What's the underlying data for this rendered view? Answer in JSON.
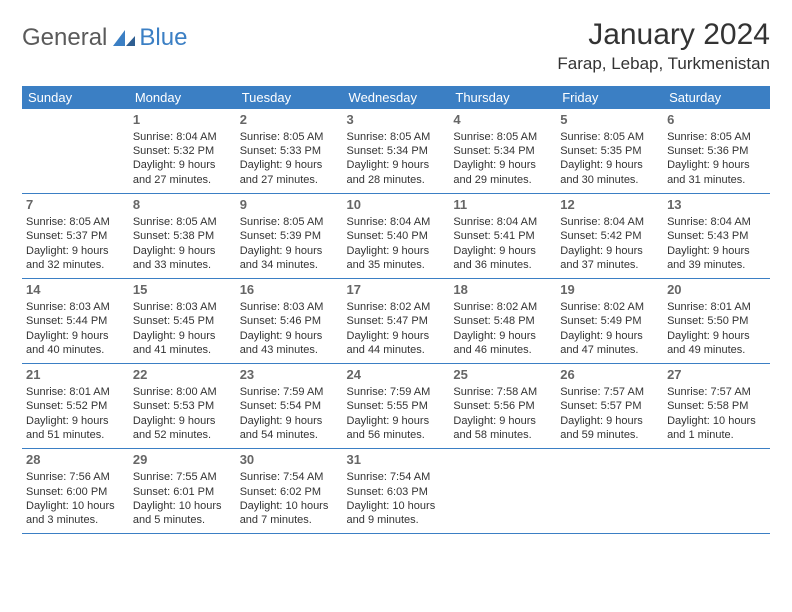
{
  "brand": {
    "general": "General",
    "blue": "Blue"
  },
  "title": "January 2024",
  "location": "Farap, Lebap, Turkmenistan",
  "style": {
    "header_bg": "#3b7fc4",
    "header_fg": "#ffffff",
    "row_border": "#3b7fc4",
    "body_bg": "#ffffff",
    "title_fontsize": 30,
    "location_fontsize": 17,
    "th_fontsize": 13,
    "cell_fontsize": 11,
    "daynum_color": "#666666"
  },
  "weekdays": [
    "Sunday",
    "Monday",
    "Tuesday",
    "Wednesday",
    "Thursday",
    "Friday",
    "Saturday"
  ],
  "weeks": [
    [
      null,
      {
        "d": "1",
        "sr": "Sunrise: 8:04 AM",
        "ss": "Sunset: 5:32 PM",
        "dl": "Daylight: 9 hours and 27 minutes."
      },
      {
        "d": "2",
        "sr": "Sunrise: 8:05 AM",
        "ss": "Sunset: 5:33 PM",
        "dl": "Daylight: 9 hours and 27 minutes."
      },
      {
        "d": "3",
        "sr": "Sunrise: 8:05 AM",
        "ss": "Sunset: 5:34 PM",
        "dl": "Daylight: 9 hours and 28 minutes."
      },
      {
        "d": "4",
        "sr": "Sunrise: 8:05 AM",
        "ss": "Sunset: 5:34 PM",
        "dl": "Daylight: 9 hours and 29 minutes."
      },
      {
        "d": "5",
        "sr": "Sunrise: 8:05 AM",
        "ss": "Sunset: 5:35 PM",
        "dl": "Daylight: 9 hours and 30 minutes."
      },
      {
        "d": "6",
        "sr": "Sunrise: 8:05 AM",
        "ss": "Sunset: 5:36 PM",
        "dl": "Daylight: 9 hours and 31 minutes."
      }
    ],
    [
      {
        "d": "7",
        "sr": "Sunrise: 8:05 AM",
        "ss": "Sunset: 5:37 PM",
        "dl": "Daylight: 9 hours and 32 minutes."
      },
      {
        "d": "8",
        "sr": "Sunrise: 8:05 AM",
        "ss": "Sunset: 5:38 PM",
        "dl": "Daylight: 9 hours and 33 minutes."
      },
      {
        "d": "9",
        "sr": "Sunrise: 8:05 AM",
        "ss": "Sunset: 5:39 PM",
        "dl": "Daylight: 9 hours and 34 minutes."
      },
      {
        "d": "10",
        "sr": "Sunrise: 8:04 AM",
        "ss": "Sunset: 5:40 PM",
        "dl": "Daylight: 9 hours and 35 minutes."
      },
      {
        "d": "11",
        "sr": "Sunrise: 8:04 AM",
        "ss": "Sunset: 5:41 PM",
        "dl": "Daylight: 9 hours and 36 minutes."
      },
      {
        "d": "12",
        "sr": "Sunrise: 8:04 AM",
        "ss": "Sunset: 5:42 PM",
        "dl": "Daylight: 9 hours and 37 minutes."
      },
      {
        "d": "13",
        "sr": "Sunrise: 8:04 AM",
        "ss": "Sunset: 5:43 PM",
        "dl": "Daylight: 9 hours and 39 minutes."
      }
    ],
    [
      {
        "d": "14",
        "sr": "Sunrise: 8:03 AM",
        "ss": "Sunset: 5:44 PM",
        "dl": "Daylight: 9 hours and 40 minutes."
      },
      {
        "d": "15",
        "sr": "Sunrise: 8:03 AM",
        "ss": "Sunset: 5:45 PM",
        "dl": "Daylight: 9 hours and 41 minutes."
      },
      {
        "d": "16",
        "sr": "Sunrise: 8:03 AM",
        "ss": "Sunset: 5:46 PM",
        "dl": "Daylight: 9 hours and 43 minutes."
      },
      {
        "d": "17",
        "sr": "Sunrise: 8:02 AM",
        "ss": "Sunset: 5:47 PM",
        "dl": "Daylight: 9 hours and 44 minutes."
      },
      {
        "d": "18",
        "sr": "Sunrise: 8:02 AM",
        "ss": "Sunset: 5:48 PM",
        "dl": "Daylight: 9 hours and 46 minutes."
      },
      {
        "d": "19",
        "sr": "Sunrise: 8:02 AM",
        "ss": "Sunset: 5:49 PM",
        "dl": "Daylight: 9 hours and 47 minutes."
      },
      {
        "d": "20",
        "sr": "Sunrise: 8:01 AM",
        "ss": "Sunset: 5:50 PM",
        "dl": "Daylight: 9 hours and 49 minutes."
      }
    ],
    [
      {
        "d": "21",
        "sr": "Sunrise: 8:01 AM",
        "ss": "Sunset: 5:52 PM",
        "dl": "Daylight: 9 hours and 51 minutes."
      },
      {
        "d": "22",
        "sr": "Sunrise: 8:00 AM",
        "ss": "Sunset: 5:53 PM",
        "dl": "Daylight: 9 hours and 52 minutes."
      },
      {
        "d": "23",
        "sr": "Sunrise: 7:59 AM",
        "ss": "Sunset: 5:54 PM",
        "dl": "Daylight: 9 hours and 54 minutes."
      },
      {
        "d": "24",
        "sr": "Sunrise: 7:59 AM",
        "ss": "Sunset: 5:55 PM",
        "dl": "Daylight: 9 hours and 56 minutes."
      },
      {
        "d": "25",
        "sr": "Sunrise: 7:58 AM",
        "ss": "Sunset: 5:56 PM",
        "dl": "Daylight: 9 hours and 58 minutes."
      },
      {
        "d": "26",
        "sr": "Sunrise: 7:57 AM",
        "ss": "Sunset: 5:57 PM",
        "dl": "Daylight: 9 hours and 59 minutes."
      },
      {
        "d": "27",
        "sr": "Sunrise: 7:57 AM",
        "ss": "Sunset: 5:58 PM",
        "dl": "Daylight: 10 hours and 1 minute."
      }
    ],
    [
      {
        "d": "28",
        "sr": "Sunrise: 7:56 AM",
        "ss": "Sunset: 6:00 PM",
        "dl": "Daylight: 10 hours and 3 minutes."
      },
      {
        "d": "29",
        "sr": "Sunrise: 7:55 AM",
        "ss": "Sunset: 6:01 PM",
        "dl": "Daylight: 10 hours and 5 minutes."
      },
      {
        "d": "30",
        "sr": "Sunrise: 7:54 AM",
        "ss": "Sunset: 6:02 PM",
        "dl": "Daylight: 10 hours and 7 minutes."
      },
      {
        "d": "31",
        "sr": "Sunrise: 7:54 AM",
        "ss": "Sunset: 6:03 PM",
        "dl": "Daylight: 10 hours and 9 minutes."
      },
      null,
      null,
      null
    ]
  ]
}
